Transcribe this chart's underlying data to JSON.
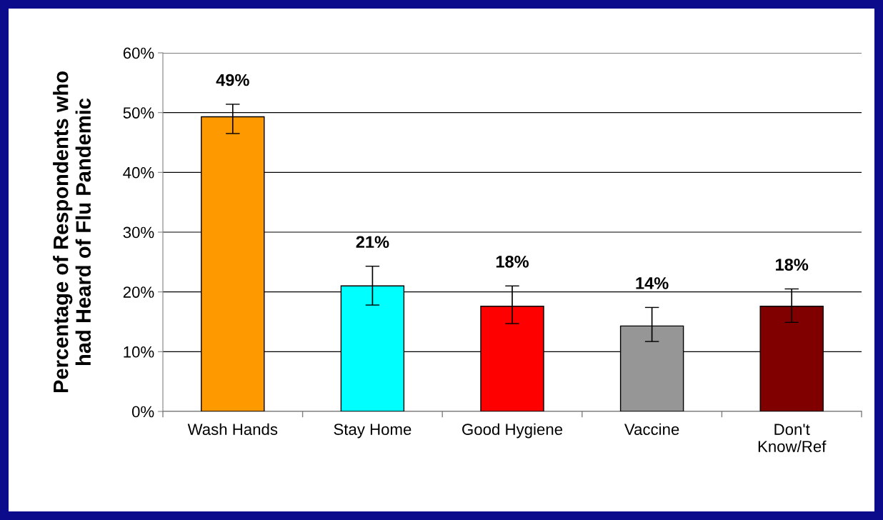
{
  "chart_data": {
    "type": "bar",
    "ylabel": "Percentage of Respondents who\nhad Heard of Flu Pandemic",
    "categories": [
      "Wash Hands",
      "Stay Home",
      "Good Hygiene",
      "Vaccine",
      "Don't\nKnow/Ref"
    ],
    "values": [
      49.3,
      21.0,
      17.6,
      14.3,
      17.6
    ],
    "colors": [
      "#ff9900",
      "#00ffff",
      "#ff0000",
      "#969696",
      "#800000"
    ],
    "errors": [
      [
        46.5,
        51.4
      ],
      [
        17.8,
        24.3
      ],
      [
        14.7,
        21.0
      ],
      [
        11.7,
        17.4
      ],
      [
        14.9,
        20.5
      ]
    ],
    "value_labels": [
      "49%",
      "21%",
      "18%",
      "14%",
      "18%"
    ],
    "ylim": [
      0,
      60
    ],
    "yticks": [
      {
        "value": 0,
        "label": "0%"
      },
      {
        "value": 10,
        "label": "10%"
      },
      {
        "value": 20,
        "label": "20%"
      },
      {
        "value": 30,
        "label": "30%"
      },
      {
        "value": 40,
        "label": "40%"
      },
      {
        "value": 50,
        "label": "50%"
      },
      {
        "value": 60,
        "label": "60%"
      }
    ],
    "grid": "y"
  }
}
